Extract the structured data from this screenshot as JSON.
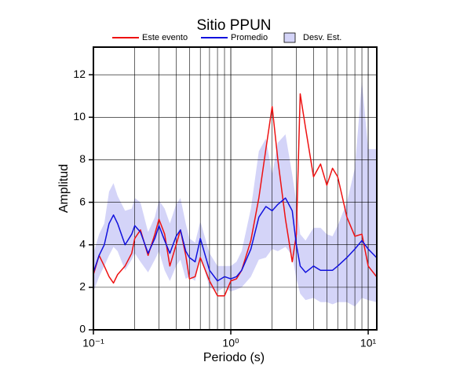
{
  "chart_data": {
    "type": "line",
    "title": "Sitio PPUN",
    "x_label": "Periodo (s)",
    "y_label": "Amplitud",
    "x_log": true,
    "grid": true,
    "minor_grid": true,
    "legend": "top",
    "xlim": [
      0.1,
      11.55
    ],
    "ylim": [
      0,
      13.3
    ],
    "xticks": [
      {
        "value": 0.1,
        "label": "10⁻¹"
      },
      {
        "value": 1,
        "label": "10⁰"
      },
      {
        "value": 10,
        "label": "10¹"
      }
    ],
    "yticks": [
      0,
      2,
      4,
      6,
      8,
      10,
      12
    ],
    "x": [
      0.1,
      0.11,
      0.12,
      0.13,
      0.14,
      0.15,
      0.17,
      0.19,
      0.2,
      0.22,
      0.25,
      0.28,
      0.3,
      0.33,
      0.36,
      0.4,
      0.43,
      0.47,
      0.5,
      0.55,
      0.6,
      0.7,
      0.8,
      0.9,
      1.0,
      1.1,
      1.2,
      1.4,
      1.6,
      1.8,
      2.0,
      2.2,
      2.5,
      2.8,
      3.0,
      3.2,
      3.5,
      4.0,
      4.5,
      5.0,
      5.5,
      6.0,
      7.0,
      8.0,
      9.0,
      10,
      11.5
    ],
    "series": [
      {
        "name": "Este evento",
        "color": "#ee1111",
        "values": [
          2.6,
          3.5,
          3.0,
          2.5,
          2.2,
          2.6,
          3.0,
          3.6,
          4.3,
          4.7,
          3.5,
          4.5,
          5.2,
          4.5,
          3.0,
          4.0,
          4.7,
          3.5,
          2.4,
          2.5,
          3.4,
          2.3,
          1.6,
          1.6,
          2.3,
          2.4,
          2.8,
          4.2,
          6.2,
          8.5,
          10.5,
          8,
          5.2,
          3.2,
          4.5,
          11.1,
          9.5,
          7.2,
          7.8,
          6.8,
          7.6,
          7.2,
          5.3,
          4.4,
          4.5,
          3.0,
          2.5
        ]
      },
      {
        "name": "Promedio",
        "color": "#1111dd",
        "values": [
          2.7,
          3.5,
          4.0,
          5.0,
          5.4,
          5.0,
          4.0,
          4.5,
          4.9,
          4.6,
          3.6,
          4.3,
          4.9,
          4.2,
          3.6,
          4.4,
          4.7,
          3.7,
          3.4,
          3.2,
          4.3,
          2.8,
          2.3,
          2.5,
          2.4,
          2.5,
          2.8,
          3.8,
          5.3,
          5.8,
          5.6,
          5.9,
          6.2,
          5.6,
          4.0,
          3.0,
          2.7,
          3.0,
          2.8,
          2.8,
          2.8,
          3.0,
          3.4,
          3.8,
          4.2,
          3.8,
          3.4
        ]
      },
      {
        "name": "Desv. Est.",
        "color": "#d4d4f8",
        "upper": [
          3.6,
          4.5,
          5.0,
          6.5,
          6.9,
          6.3,
          5.6,
          5.7,
          6.2,
          6.0,
          4.6,
          5.3,
          6.1,
          5.7,
          5.0,
          5.9,
          6.2,
          5.0,
          4.3,
          4.1,
          5.1,
          3.6,
          3.0,
          3.0,
          3.0,
          3.2,
          3.7,
          5.7,
          8.4,
          9.0,
          7.3,
          8.8,
          9.2,
          7.3,
          6.0,
          4.5,
          4.2,
          4.8,
          4.8,
          4.5,
          4.4,
          4.9,
          6.0,
          7.6,
          11.7,
          8.5,
          8.5
        ],
        "lower": [
          1.8,
          2.5,
          3.0,
          3.5,
          3.9,
          3.7,
          2.8,
          3.3,
          3.6,
          3.2,
          2.7,
          3.3,
          3.7,
          2.8,
          2.3,
          3.0,
          3.3,
          2.4,
          2.5,
          2.3,
          3.5,
          2.0,
          1.8,
          2.0,
          1.8,
          1.9,
          2.0,
          2.5,
          3.3,
          3.4,
          3.8,
          3.7,
          3.9,
          3.5,
          2.4,
          1.7,
          1.4,
          1.5,
          1.3,
          1.3,
          1.2,
          1.3,
          1.3,
          1.1,
          1.5,
          1.4,
          1.3
        ]
      }
    ]
  }
}
